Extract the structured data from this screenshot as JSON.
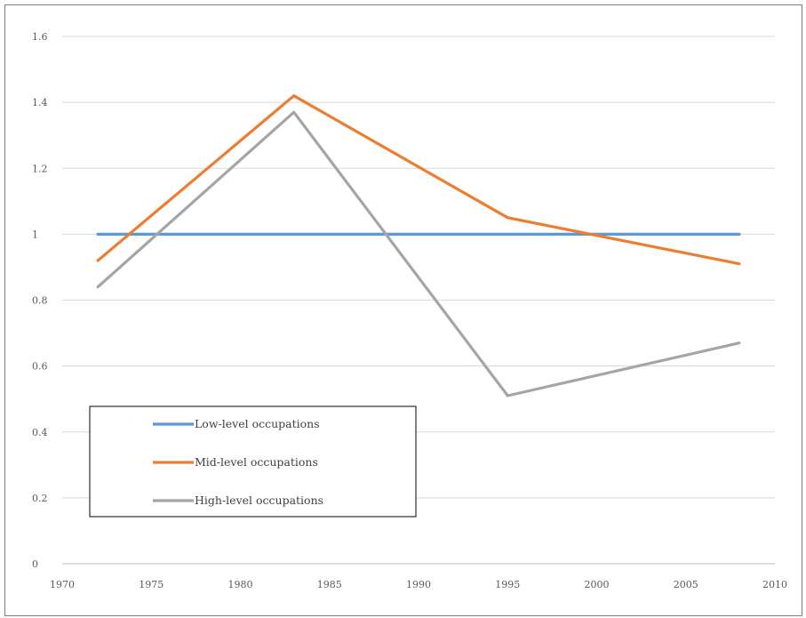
{
  "chart_data": {
    "type": "line",
    "title": "",
    "xlabel": "",
    "ylabel": "",
    "xlim": [
      1970,
      2010
    ],
    "ylim": [
      0,
      1.6
    ],
    "x_ticks": [
      1970,
      1975,
      1980,
      1985,
      1990,
      1995,
      2000,
      2005,
      2010
    ],
    "y_ticks": [
      0,
      0.2,
      0.4,
      0.6,
      0.8,
      1,
      1.2,
      1.4,
      1.6
    ],
    "x_tick_labels": [
      "1970",
      "1975",
      "1980",
      "1985",
      "1990",
      "1995",
      "2000",
      "2005",
      "2010"
    ],
    "y_tick_labels": [
      "0",
      "0.2",
      "0.4",
      "0.6",
      "0.8",
      "1",
      "1.2",
      "1.4",
      "1.6"
    ],
    "grid": "horizontal",
    "legend_position": "bottom-left",
    "series": [
      {
        "name": "Low-level occupations",
        "color": "#5B9BD5",
        "x": [
          1972,
          1983,
          1995,
          2008
        ],
        "y": [
          1.0,
          1.0,
          1.0,
          1.0
        ]
      },
      {
        "name": "Mid-level occupations",
        "color": "#ED7D31",
        "x": [
          1972,
          1983,
          1995,
          2008
        ],
        "y": [
          0.92,
          1.42,
          1.05,
          0.91
        ]
      },
      {
        "name": "High-level occupations",
        "color": "#A5A5A5",
        "x": [
          1972,
          1983,
          1995,
          2008
        ],
        "y": [
          0.84,
          1.37,
          0.51,
          0.67
        ]
      }
    ]
  }
}
